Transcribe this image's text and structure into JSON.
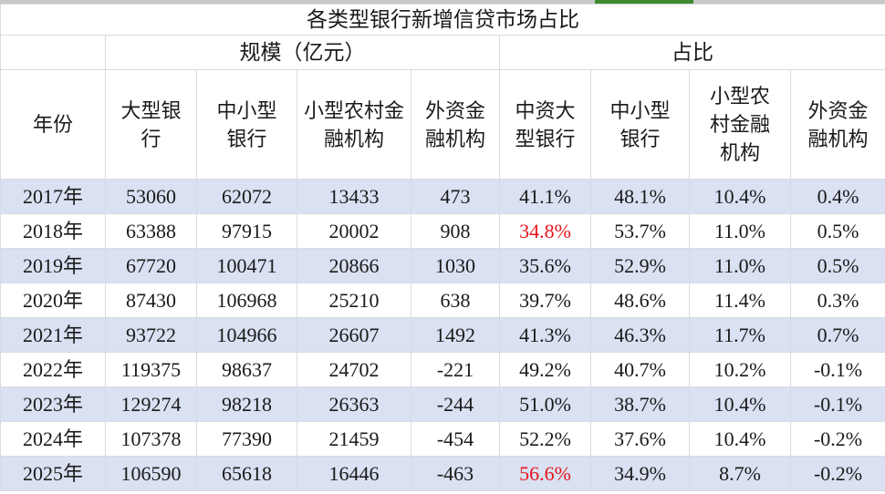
{
  "title": "各类型银行新增信贷市场占比",
  "groups": {
    "scale": "规模（亿元）",
    "share": "占比"
  },
  "headers": [
    "年份",
    "大型银行",
    "中小型银行",
    "小型农村金融机构",
    "外资金融机构",
    "中资大型银行",
    "中小型银行",
    "小型农村金融机构",
    "外资金融机构"
  ],
  "rows": [
    {
      "cells": [
        "2017年",
        "53060",
        "62072",
        "13433",
        "473",
        "41.1%",
        "48.1%",
        "10.4%",
        "0.4%"
      ],
      "highlight": false
    },
    {
      "cells": [
        "2018年",
        "63388",
        "97915",
        "20002",
        "908",
        "34.8%",
        "53.7%",
        "11.0%",
        "0.5%"
      ],
      "highlight": true
    },
    {
      "cells": [
        "2019年",
        "67720",
        "100471",
        "20866",
        "1030",
        "35.6%",
        "52.9%",
        "11.0%",
        "0.5%"
      ],
      "highlight": false
    },
    {
      "cells": [
        "2020年",
        "87430",
        "106968",
        "25210",
        "638",
        "39.7%",
        "48.6%",
        "11.4%",
        "0.3%"
      ],
      "highlight": false
    },
    {
      "cells": [
        "2021年",
        "93722",
        "104966",
        "26607",
        "1492",
        "41.3%",
        "46.3%",
        "11.7%",
        "0.7%"
      ],
      "highlight": false
    },
    {
      "cells": [
        "2022年",
        "119375",
        "98637",
        "24702",
        "-221",
        "49.2%",
        "40.7%",
        "10.2%",
        "-0.1%"
      ],
      "highlight": false
    },
    {
      "cells": [
        "2023年",
        "129274",
        "98218",
        "26363",
        "-244",
        "51.0%",
        "38.7%",
        "10.4%",
        "-0.1%"
      ],
      "highlight": false
    },
    {
      "cells": [
        "2024年",
        "107378",
        "77390",
        "21459",
        "-454",
        "52.2%",
        "37.6%",
        "10.4%",
        "-0.2%"
      ],
      "highlight": false
    },
    {
      "cells": [
        "2025年",
        "106590",
        "65618",
        "16446",
        "-463",
        "56.6%",
        "34.9%",
        "8.7%",
        "-0.2%"
      ],
      "highlight": true
    }
  ],
  "colors": {
    "shade_row": "#d9e1f2",
    "highlight_text": "#e8151b",
    "accent_bar": "#3f8a2e"
  }
}
